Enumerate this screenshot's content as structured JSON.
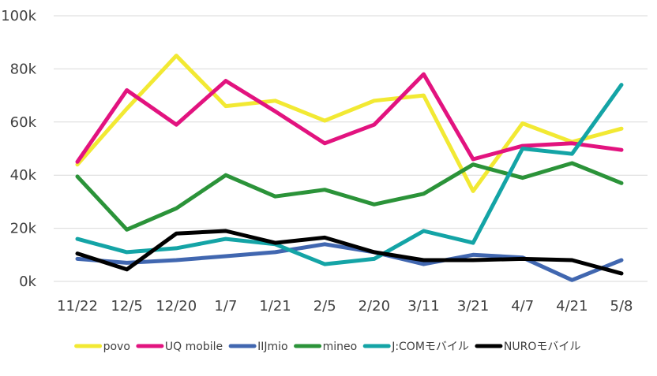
{
  "chart_data": {
    "type": "line",
    "categories": [
      "11/22",
      "12/5",
      "12/20",
      "1/7",
      "1/21",
      "2/5",
      "2/20",
      "3/11",
      "3/21",
      "4/7",
      "4/21",
      "5/8"
    ],
    "ylim": [
      0,
      100000
    ],
    "yticks": [
      {
        "value": 0,
        "label": "0k"
      },
      {
        "value": 20000,
        "label": "20k"
      },
      {
        "value": 40000,
        "label": "40k"
      },
      {
        "value": 60000,
        "label": "60k"
      },
      {
        "value": 80000,
        "label": "80k"
      },
      {
        "value": 100000,
        "label": "100k"
      }
    ],
    "grid": true,
    "legend_position": "bottom",
    "series": [
      {
        "name": "povo",
        "color": "#f2e933",
        "values": [
          44000,
          65000,
          85000,
          66000,
          68000,
          60500,
          68000,
          70000,
          34000,
          59500,
          52500,
          57500
        ]
      },
      {
        "name": "UQ mobile",
        "color": "#e2137f",
        "values": [
          45000,
          72000,
          59000,
          75500,
          64000,
          52000,
          59000,
          78000,
          46000,
          51000,
          52000,
          49500
        ]
      },
      {
        "name": "IIJmio",
        "color": "#4167b0",
        "values": [
          8500,
          7000,
          8000,
          9500,
          11000,
          14000,
          11000,
          6500,
          10000,
          9000,
          500,
          8000
        ]
      },
      {
        "name": "mineo",
        "color": "#2b9339",
        "values": [
          39500,
          19500,
          27500,
          40000,
          32000,
          34500,
          29000,
          33000,
          44000,
          39000,
          44500,
          37000
        ]
      },
      {
        "name": "J:COMモバイル",
        "color": "#14a4a6",
        "values": [
          16000,
          11000,
          12500,
          16000,
          14000,
          6500,
          8500,
          19000,
          14500,
          50000,
          48000,
          74000
        ]
      },
      {
        "name": "NUROモバイル",
        "color": "#000000",
        "values": [
          10500,
          4500,
          18000,
          19000,
          14500,
          16500,
          11000,
          8000,
          8000,
          8500,
          8000,
          3000
        ]
      }
    ]
  }
}
